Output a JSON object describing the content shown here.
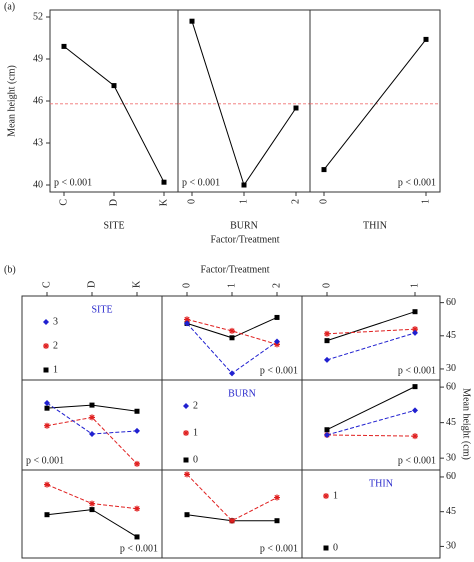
{
  "chart_data": [
    {
      "type": "main-effects",
      "panel_label": "(a)",
      "ylabel": "Mean height (cm)",
      "xlabel": "Factor/Treatment",
      "ylim": [
        39.5,
        52.5
      ],
      "yticks": [
        40,
        43,
        46,
        49,
        52
      ],
      "reference_line": 45.8,
      "reference_color": "#f07070",
      "color": "#000000",
      "panels": [
        {
          "name": "SITE",
          "categories": [
            "C",
            "D",
            "K"
          ],
          "values": [
            49.9,
            47.1,
            40.2
          ],
          "annotation": "p < 0.001"
        },
        {
          "name": "BURN",
          "categories": [
            "0",
            "1",
            "2"
          ],
          "values": [
            51.7,
            40.0,
            45.5
          ],
          "annotation": "p < 0.001"
        },
        {
          "name": "THIN",
          "categories": [
            "0",
            "1"
          ],
          "values": [
            41.1,
            50.4
          ],
          "annotation": "p < 0.001"
        }
      ]
    },
    {
      "type": "interaction-matrix",
      "panel_label": "(b)",
      "xlabel": "Factor/Treatment",
      "ylabel": "Mean height (cm)",
      "ylim": [
        25,
        63
      ],
      "yticks": [
        30,
        45,
        60
      ],
      "label_color": "#2a2acc",
      "factors": [
        {
          "name": "SITE",
          "categories": [
            "C",
            "D",
            "K"
          ],
          "levels": [
            "1",
            "2",
            "3"
          ],
          "colors": [
            "#000000",
            "#e02020",
            "#2020d0"
          ],
          "cells": [
            null,
            {
              "series": [
                {
                  "values": [
                    50.6,
                    44.1,
                    53.3
                  ]
                },
                {
                  "values": [
                    52.4,
                    47.2,
                    41.1
                  ]
                },
                {
                  "values": [
                    50.6,
                    28.0,
                    42.4
                  ]
                }
              ],
              "annotation": "p < 0.001"
            },
            {
              "series": [
                {
                  "values": [
                    42.8,
                    55.9
                  ]
                },
                {
                  "values": [
                    45.9,
                    48.0
                  ]
                },
                {
                  "values": [
                    34.1,
                    46.3
                  ]
                }
              ],
              "annotation": "p < 0.001"
            }
          ]
        },
        {
          "name": "BURN",
          "categories": [
            "0",
            "1",
            "2"
          ],
          "levels": [
            "0",
            "1",
            "2"
          ],
          "colors": [
            "#000000",
            "#e02020",
            "#2020d0"
          ],
          "cells": [
            {
              "series": [
                {
                  "values": [
                    51.1,
                    52.4,
                    49.8
                  ]
                },
                {
                  "values": [
                    43.7,
                    47.2,
                    27.6
                  ]
                },
                {
                  "values": [
                    53.3,
                    40.2,
                    41.5
                  ]
                }
              ],
              "annotation": "p < 0.001"
            },
            null,
            {
              "series": [
                {
                  "values": [
                    42.0,
                    60.2
                  ]
                },
                {
                  "values": [
                    39.8,
                    39.3
                  ]
                },
                {
                  "values": [
                    39.8,
                    50.2
                  ]
                }
              ],
              "annotation": "p < 0.001"
            }
          ]
        },
        {
          "name": "THIN",
          "categories": [
            "0",
            "1"
          ],
          "levels": [
            "0",
            "1"
          ],
          "colors": [
            "#000000",
            "#e02020"
          ],
          "cells": [
            {
              "series": [
                {
                  "values": [
                    43.7,
                    45.9,
                    34.1
                  ]
                },
                {
                  "values": [
                    56.7,
                    48.5,
                    46.3
                  ]
                }
              ],
              "annotation": "p < 0.001"
            },
            {
              "series": [
                {
                  "values": [
                    43.7,
                    41.1,
                    41.1
                  ]
                },
                {
                  "values": [
                    61.1,
                    41.1,
                    51.1
                  ]
                }
              ],
              "annotation": "p < 0.001"
            },
            null
          ]
        }
      ]
    }
  ]
}
